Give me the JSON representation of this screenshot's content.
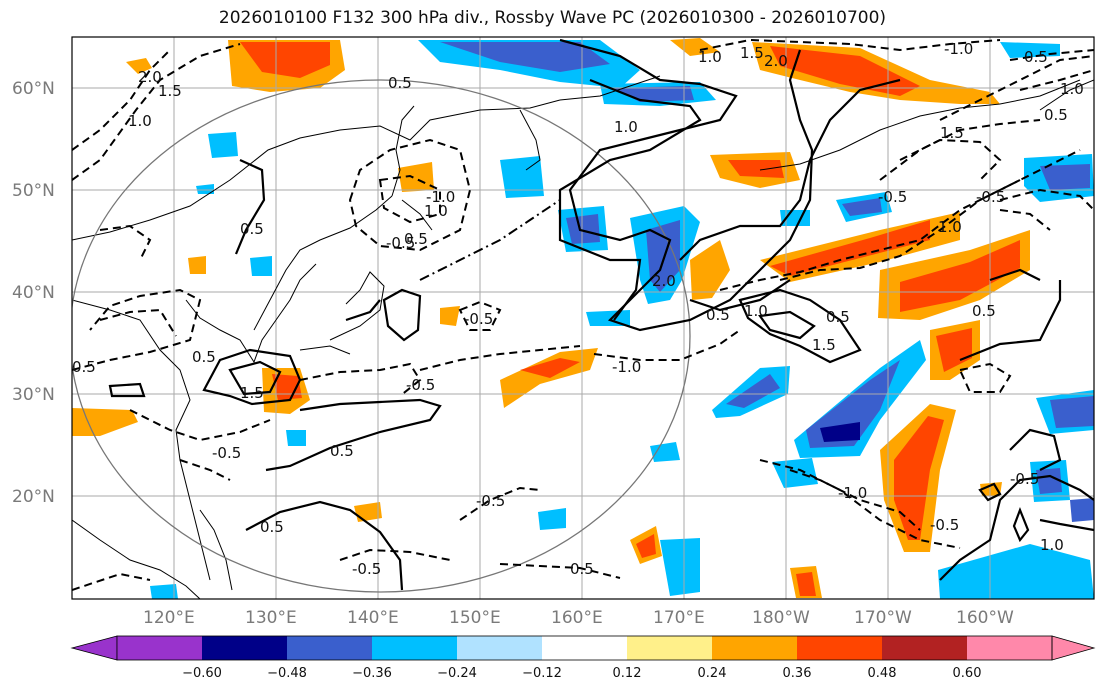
{
  "title": "2026010100 F132 300 hPa div., Rossby Wave PC (2026010300 - 2026010700)",
  "colors": {
    "neg_extreme": "#9933cc",
    "neg_060": "#000088",
    "neg_048": "#3a5fcd",
    "neg_036": "#00b2ee",
    "neg_024": "#00bfff",
    "neg_012": "#b0e2ff",
    "zero": "#ffffff",
    "pos_012": "#fff08a",
    "pos_024": "#ffa500",
    "pos_036": "#ff4500",
    "pos_048": "#b22222",
    "pos_extreme": "#ff88aa",
    "grid": "#aaaaaa",
    "circle": "#777777"
  },
  "map": {
    "lat_ticks": [
      "60°N",
      "50°N",
      "40°N",
      "30°N",
      "20°N"
    ],
    "lon_ticks": [
      "120°E",
      "130°E",
      "140°E",
      "150°E",
      "160°E",
      "170°E",
      "180°W",
      "170°W",
      "160°W"
    ]
  },
  "colorbar": {
    "labels": [
      "−0.60",
      "−0.48",
      "−0.36",
      "−0.24",
      "−0.12",
      "0.12",
      "0.24",
      "0.36",
      "0.48",
      "0.60"
    ]
  },
  "contour_labels": [
    "2.0",
    "1.5",
    "1.0",
    "0.5",
    "0.5",
    "-0.5",
    "1.0",
    "0.5",
    "0.5",
    "0.5",
    "-1.0",
    "0.5",
    "-0.5",
    "0.5",
    "-0.5",
    "1.5",
    "-0.5",
    "0.5",
    "1.0",
    "2.0",
    "-1.0",
    "0.5",
    "-0.5",
    "1.0",
    "1.5",
    "0.5",
    "1.0",
    "2.0",
    "0.5",
    "-1.0",
    "1.5",
    "0.5",
    "-0.5",
    "1.0",
    "-1.0",
    "-0.5",
    "-0.5",
    "1.0",
    "-0.5",
    "1.5",
    "-0.5",
    "0.5",
    "1.0"
  ]
}
